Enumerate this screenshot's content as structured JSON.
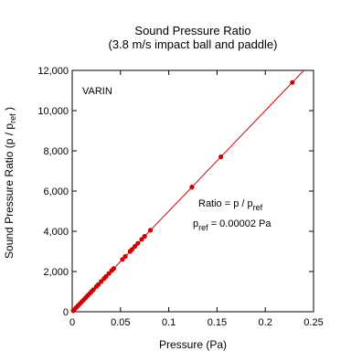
{
  "chart_data": {
    "type": "scatter",
    "title": "Sound Pressure Ratio",
    "subtitle": "(3.8 m/s impact ball and paddle)",
    "x_label": "Pressure (Pa)",
    "y_label": [
      "Sound Pressure  Ratio (p / p",
      "ref",
      " )"
    ],
    "annotations": [
      {
        "text": "VARIN"
      },
      {
        "text": "Ratio = p / p",
        "sub": "ref"
      },
      {
        "text": "p",
        "sub": "ref",
        "after": " = 0.00002 Pa"
      }
    ],
    "series": [
      {
        "color": "#d40000",
        "x": [
          0.001,
          0.002,
          0.004,
          0.006,
          0.008,
          0.01,
          0.012,
          0.014,
          0.016,
          0.018,
          0.02,
          0.022,
          0.025,
          0.027,
          0.03,
          0.033,
          0.035,
          0.038,
          0.041,
          0.043,
          0.052,
          0.055,
          0.06,
          0.062,
          0.065,
          0.068,
          0.072,
          0.075,
          0.081,
          0.124,
          0.154,
          0.228
        ],
        "values": [
          50,
          100,
          200,
          300,
          400,
          500,
          600,
          700,
          800,
          900,
          1000,
          1100,
          1250,
          1350,
          1500,
          1650,
          1750,
          1900,
          2050,
          2150,
          2600,
          2750,
          3000,
          3100,
          3250,
          3400,
          3600,
          3750,
          4050,
          6200,
          7700,
          11400
        ]
      }
    ],
    "fit_line": {
      "color": "#d40000",
      "x": [
        0,
        0.24
      ],
      "values": [
        0,
        12000
      ]
    },
    "xlim": [
      0,
      0.25
    ],
    "xticks": [
      0,
      0.05,
      0.1,
      0.15,
      0.2,
      0.25
    ],
    "ylim": [
      0,
      12000
    ],
    "yticks": [
      0,
      {
        "value": 2000,
        "label": "2,000"
      },
      {
        "value": 4000,
        "label": "4,000"
      },
      {
        "value": 6000,
        "label": "6,000"
      },
      {
        "value": 8000,
        "label": "8,000"
      },
      {
        "value": 10000,
        "label": "10,000"
      },
      {
        "value": 12000,
        "label": "12,000"
      }
    ],
    "grid": false
  }
}
